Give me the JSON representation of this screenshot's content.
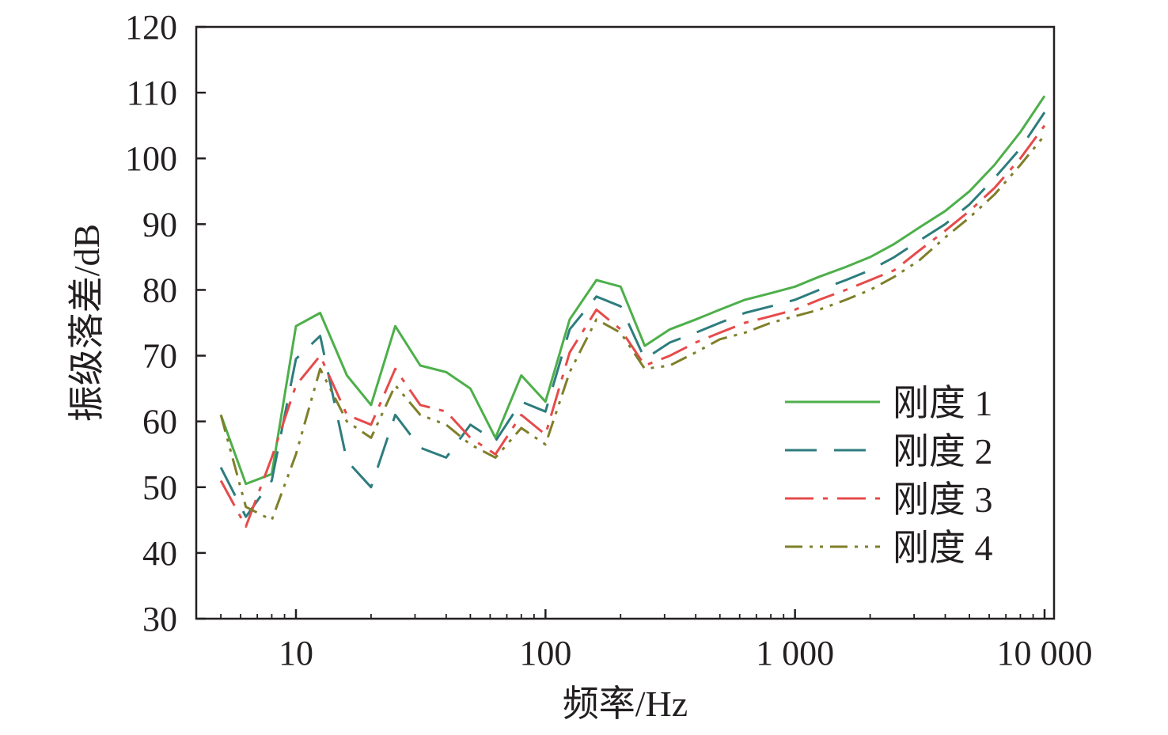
{
  "chart_data": {
    "type": "line",
    "xscale": "log",
    "xlim": [
      5,
      10000
    ],
    "ylim": [
      30,
      120
    ],
    "xlabel": "频率/Hz",
    "ylabel": "振级落差/dB",
    "xticks": [
      10,
      100,
      1000,
      10000
    ],
    "xtick_labels": [
      "10",
      "100",
      "1 000",
      "10 000"
    ],
    "yticks": [
      30,
      40,
      50,
      60,
      70,
      80,
      90,
      100,
      110,
      120
    ],
    "ytick_labels": [
      "30",
      "40",
      "50",
      "60",
      "70",
      "80",
      "90",
      "100",
      "110",
      "120"
    ],
    "legend_position": "bottom-right",
    "x": [
      5,
      6.3,
      8,
      10,
      12.5,
      16,
      20,
      25,
      31.5,
      40,
      50,
      63,
      80,
      100,
      125,
      160,
      200,
      250,
      315,
      400,
      500,
      630,
      800,
      1000,
      1250,
      1600,
      2000,
      2500,
      3150,
      4000,
      5000,
      6300,
      8000,
      10000
    ],
    "series": [
      {
        "name": "刚度 1",
        "color": "#4daf4a",
        "dash": "",
        "values": [
          61,
          50.5,
          52,
          74.5,
          76.5,
          67,
          62.5,
          74.5,
          68.5,
          67.5,
          65,
          57.5,
          67,
          63,
          75.5,
          81.5,
          80.5,
          71.5,
          74,
          75.5,
          77,
          78.5,
          79.5,
          80.5,
          82,
          83.5,
          85,
          87,
          89.5,
          92,
          95,
          99,
          104,
          109.5
        ]
      },
      {
        "name": "刚度 2",
        "color": "#2e7d7e",
        "dash": "40,22",
        "values": [
          53,
          45.5,
          51,
          69.5,
          73,
          54,
          50,
          61,
          56,
          54.5,
          59.5,
          57,
          63,
          61.5,
          74,
          79,
          77.5,
          69.5,
          72,
          73.5,
          75,
          76.5,
          77.5,
          78.5,
          80,
          81.5,
          83,
          85,
          87.5,
          90,
          93,
          97,
          101.5,
          107
        ]
      },
      {
        "name": "刚度 3",
        "color": "#e64b4b",
        "dash": "36,12,6,12",
        "values": [
          51,
          44,
          54.5,
          65.5,
          70,
          61,
          59.5,
          68,
          62.5,
          61.5,
          57.5,
          55,
          61,
          58,
          70.5,
          77,
          74,
          68.5,
          70,
          72,
          73.5,
          75,
          76,
          77,
          78.5,
          80,
          81.5,
          83,
          86,
          89,
          92,
          95.5,
          100,
          105
        ]
      },
      {
        "name": "刚度 4",
        "color": "#7f7f2a",
        "dash": "22,9,4,9,4,9",
        "values": [
          61,
          47,
          45,
          55,
          68,
          60,
          57.5,
          65.5,
          61,
          59.5,
          56.5,
          54.5,
          59,
          56.5,
          67.5,
          75.5,
          73.5,
          68,
          68.5,
          70.5,
          72.5,
          73.5,
          75,
          76,
          77,
          78.5,
          80,
          82,
          84.5,
          88,
          91,
          94.5,
          99,
          103.5
        ]
      }
    ]
  }
}
